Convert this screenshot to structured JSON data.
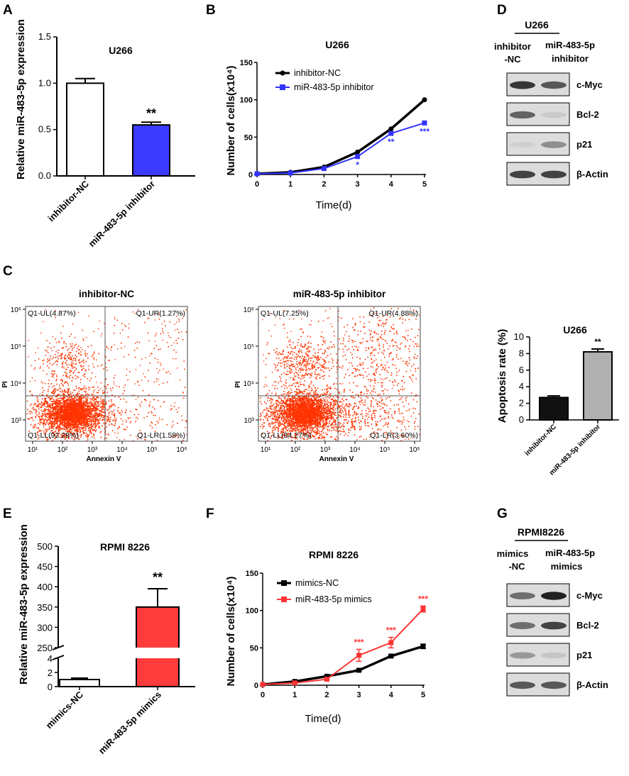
{
  "panels": {
    "A": "A",
    "B": "B",
    "C": "C",
    "D": "D",
    "E": "E",
    "F": "F",
    "G": "G"
  },
  "chart_data": [
    {
      "id": "A",
      "type": "bar",
      "title": "U266",
      "ylabel": "Relative miR-483-5p expression",
      "xlabel": "",
      "ylim": [
        0,
        1.5
      ],
      "yticks": [
        "0.0",
        "0.5",
        "1.0",
        "1.5"
      ],
      "categories": [
        "inhibitor-NC",
        "miR-483-5p inhibitor"
      ],
      "values": [
        1.0,
        0.55
      ],
      "errors": [
        0.05,
        0.03
      ],
      "colors": [
        "#ffffff",
        "#3b3bff"
      ],
      "annotations": [
        "",
        "**"
      ]
    },
    {
      "id": "B",
      "type": "line",
      "title": "U266",
      "ylabel": "Number of cells(x10⁴)",
      "xlabel": "Time(d)",
      "xlim": [
        0,
        5
      ],
      "ylim": [
        0,
        150
      ],
      "xticks": [
        "0",
        "1",
        "2",
        "3",
        "4",
        "5"
      ],
      "yticks": [
        "0",
        "50",
        "100",
        "150"
      ],
      "x": [
        0,
        1,
        2,
        3,
        4,
        5
      ],
      "series": [
        {
          "name": "inhibitor-NC",
          "color": "#000000",
          "values": [
            1,
            3,
            10,
            30,
            61,
            100
          ]
        },
        {
          "name": "miR-483-5p inhibitor",
          "color": "#3333ff",
          "values": [
            1,
            2,
            8,
            24,
            55,
            69
          ]
        }
      ],
      "annotations": [
        {
          "x": 3,
          "text": "*"
        },
        {
          "x": 4,
          "text": "**"
        },
        {
          "x": 5,
          "text": "***"
        }
      ]
    },
    {
      "id": "C-bar",
      "type": "bar",
      "title": "U266",
      "ylabel": "Apoptosis rate (%)",
      "xlabel": "",
      "ylim": [
        0,
        10
      ],
      "yticks": [
        "0",
        "2",
        "4",
        "6",
        "8",
        "10"
      ],
      "categories": [
        "inhibitor-NC",
        "miR-483-5p inhibitor"
      ],
      "values": [
        2.7,
        8.2
      ],
      "errors": [
        0.2,
        0.35
      ],
      "colors": [
        "#111111",
        "#b0b0b0"
      ],
      "annotations": [
        "",
        "**"
      ]
    },
    {
      "id": "E",
      "type": "bar",
      "title": "RPMI 8226",
      "ylabel": "Relative miR-483-5p expression",
      "xlabel": "",
      "yticks_upper": [
        "250",
        "300",
        "350",
        "400",
        "450",
        "500"
      ],
      "yticks_lower": [
        "0",
        "2",
        "4"
      ],
      "categories": [
        "mimics-NC",
        "miR-483-5p mimics"
      ],
      "values": [
        1.0,
        350
      ],
      "errors": [
        0.2,
        45
      ],
      "colors": [
        "#ffffff",
        "#ff3b3b"
      ],
      "annotations": [
        "",
        "**"
      ]
    },
    {
      "id": "F",
      "type": "line",
      "title": "RPMI 8226",
      "ylabel": "Number of cells(x10⁴)",
      "xlabel": "Time(d)",
      "xlim": [
        0,
        5
      ],
      "ylim": [
        0,
        150
      ],
      "xticks": [
        "0",
        "1",
        "2",
        "3",
        "4",
        "5"
      ],
      "yticks": [
        "0",
        "50",
        "100",
        "150"
      ],
      "x": [
        0,
        1,
        2,
        3,
        4,
        5
      ],
      "series": [
        {
          "name": "mimics-NC",
          "color": "#000000",
          "values": [
            1,
            5,
            12,
            20,
            39,
            52
          ]
        },
        {
          "name": "miR-483-5p mimics",
          "color": "#ff3333",
          "values": [
            1,
            3,
            8,
            40,
            57,
            102
          ]
        }
      ],
      "annotations": [
        {
          "x": 3,
          "text": "***"
        },
        {
          "x": 4,
          "text": "***"
        },
        {
          "x": 5,
          "text": "***"
        }
      ]
    }
  ],
  "flow": {
    "xlabel": "Annexin V",
    "ylabel": "PI",
    "xticks": [
      "10¹",
      "10²",
      "10³",
      "10⁴",
      "10⁵",
      "10⁶"
    ],
    "yticks": [
      "10³",
      "10⁴",
      "10⁵",
      "10⁶"
    ],
    "plots": [
      {
        "title": "inhibitor-NC",
        "UL": "Q1-UL(4.87%)",
        "UR": "Q1-UR(1.27%)",
        "LL": "Q1-LL(92.28%)",
        "LR": "Q1-LR(1.58%)"
      },
      {
        "title": "miR-483-5p inhibitor",
        "UL": "Q1-UL(7.25%)",
        "UR": "Q1-UR(4.88%)",
        "LL": "Q1-LL(84.27%)",
        "LR": "Q1-LR(3.60%)"
      }
    ]
  },
  "blots": [
    {
      "cell_line": "U266",
      "lane1": [
        "inhibitor",
        "-NC"
      ],
      "lane2": [
        "miR-483-5p",
        "inhibitor"
      ],
      "bands": [
        "c-Myc",
        "Bcl-2",
        "p21",
        "β-Actin"
      ]
    },
    {
      "cell_line": "RPMI8226",
      "lane1": [
        "mimics",
        "-NC"
      ],
      "lane2": [
        "miR-483-5p",
        "mimics"
      ],
      "bands": [
        "c-Myc",
        "Bcl-2",
        "p21",
        "β-Actin"
      ]
    }
  ],
  "colors": {
    "red": "#ff3333",
    "blue": "#3333ff",
    "dot": "#ff3300"
  }
}
